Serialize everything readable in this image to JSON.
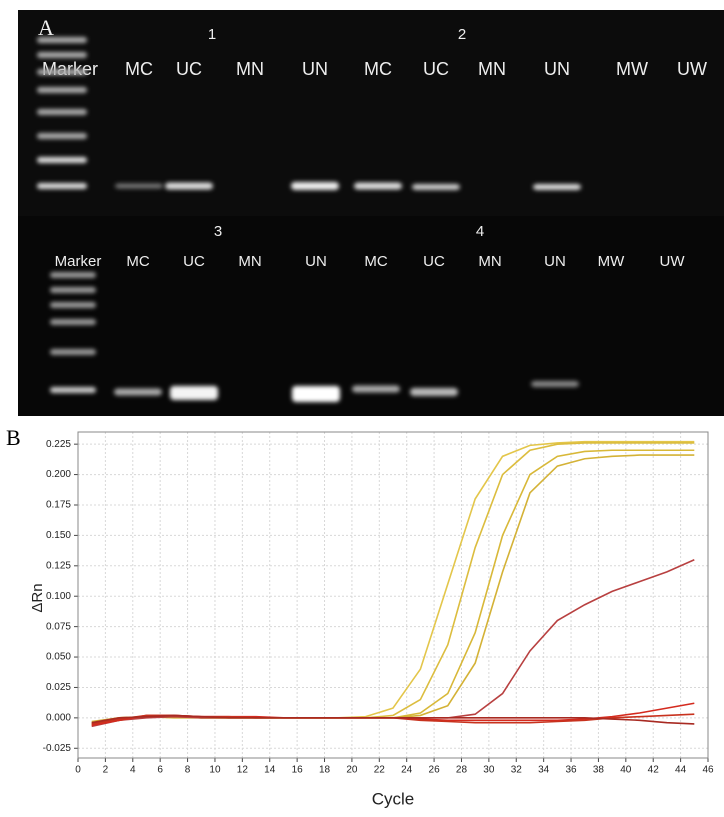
{
  "panel_a": {
    "label": "A",
    "top": {
      "groups": [
        "1",
        "2"
      ],
      "lanes": [
        "Marker",
        "MC",
        "UC",
        "MN",
        "UN",
        "MC",
        "UC",
        "MN",
        "UN",
        "MW",
        "UW"
      ]
    },
    "bottom": {
      "groups": [
        "3",
        "4"
      ],
      "lanes": [
        "Marker",
        "MC",
        "UC",
        "MN",
        "UN",
        "MC",
        "UC",
        "MN",
        "UN",
        "MW",
        "UW"
      ]
    }
  },
  "chart_data": {
    "type": "line",
    "panel_label": "B",
    "x_label": "Cycle",
    "y_label": "ΔRn",
    "x": [
      1,
      3,
      5,
      7,
      9,
      11,
      13,
      15,
      17,
      19,
      21,
      23,
      25,
      27,
      29,
      31,
      33,
      35,
      37,
      39,
      41,
      43,
      45
    ],
    "series": [
      {
        "color": "#e3c64a",
        "values": [
          -0.006,
          -0.002,
          0.001,
          0.001,
          0.0,
          0.0,
          0.0,
          0.0,
          0.0,
          0.0,
          0.001,
          0.008,
          0.04,
          0.11,
          0.18,
          0.215,
          0.224,
          0.226,
          0.227,
          0.227,
          0.227,
          0.227,
          0.227
        ]
      },
      {
        "color": "#dcbd3e",
        "values": [
          -0.005,
          -0.001,
          0.001,
          0.001,
          0.0,
          0.0,
          0.0,
          0.0,
          0.0,
          0.0,
          0.0,
          0.002,
          0.015,
          0.06,
          0.14,
          0.2,
          0.22,
          0.225,
          0.226,
          0.226,
          0.226,
          0.226,
          0.226
        ]
      },
      {
        "color": "#d8b838",
        "values": [
          -0.004,
          0.0,
          0.001,
          0.001,
          0.0,
          0.0,
          0.0,
          0.0,
          0.0,
          0.0,
          0.0,
          0.0,
          0.004,
          0.02,
          0.07,
          0.15,
          0.2,
          0.215,
          0.219,
          0.22,
          0.22,
          0.22,
          0.22
        ]
      },
      {
        "color": "#d4b236",
        "values": [
          -0.003,
          0.0,
          0.001,
          0.0,
          0.0,
          0.0,
          0.0,
          0.0,
          0.0,
          0.0,
          0.0,
          0.0,
          0.002,
          0.01,
          0.045,
          0.12,
          0.185,
          0.207,
          0.213,
          0.215,
          0.216,
          0.216,
          0.216
        ]
      },
      {
        "color": "#b84040",
        "values": [
          -0.007,
          -0.002,
          0.0,
          0.001,
          0.0,
          0.0,
          0.0,
          0.0,
          0.0,
          0.0,
          0.0,
          0.0,
          0.0,
          0.0,
          0.003,
          0.02,
          0.055,
          0.08,
          0.093,
          0.104,
          0.112,
          0.12,
          0.13
        ]
      },
      {
        "color": "#d42a1e",
        "values": [
          -0.006,
          -0.002,
          0.002,
          0.002,
          0.001,
          0.001,
          0.001,
          0.0,
          0.0,
          0.0,
          0.0,
          0.0,
          -0.001,
          -0.002,
          -0.002,
          -0.002,
          -0.002,
          -0.002,
          -0.001,
          0.001,
          0.004,
          0.008,
          0.012
        ]
      },
      {
        "color": "#c8321e",
        "values": [
          -0.005,
          -0.001,
          0.002,
          0.002,
          0.001,
          0.001,
          0.0,
          0.0,
          0.0,
          0.0,
          0.0,
          0.0,
          -0.002,
          -0.003,
          -0.004,
          -0.004,
          -0.004,
          -0.003,
          -0.002,
          0.0,
          0.001,
          0.002,
          0.003
        ]
      },
      {
        "color": "#a82a22",
        "values": [
          -0.004,
          0.0,
          0.001,
          0.002,
          0.001,
          0.0,
          0.0,
          0.0,
          0.0,
          0.0,
          0.0,
          0.0,
          0.0,
          0.0,
          0.0,
          0.0,
          0.0,
          0.0,
          0.0,
          -0.001,
          -0.002,
          -0.004,
          -0.005
        ]
      }
    ],
    "xlim": [
      0,
      46
    ],
    "xticks": [
      0,
      2,
      4,
      6,
      8,
      10,
      12,
      14,
      16,
      18,
      20,
      22,
      24,
      26,
      28,
      30,
      32,
      34,
      36,
      38,
      40,
      42,
      44,
      46
    ],
    "ylim": [
      -0.033,
      0.235
    ],
    "yticks": [
      -0.025,
      {
        "value": 0,
        "label": "0.000"
      },
      0.025,
      {
        "value": 0.05,
        "label": "0.050"
      },
      0.075,
      {
        "value": 0.1,
        "label": "0.100"
      },
      0.125,
      {
        "value": 0.15,
        "label": "0.150"
      },
      0.175,
      {
        "value": 0.2,
        "label": "0.200"
      },
      0.225
    ],
    "grid": true
  }
}
